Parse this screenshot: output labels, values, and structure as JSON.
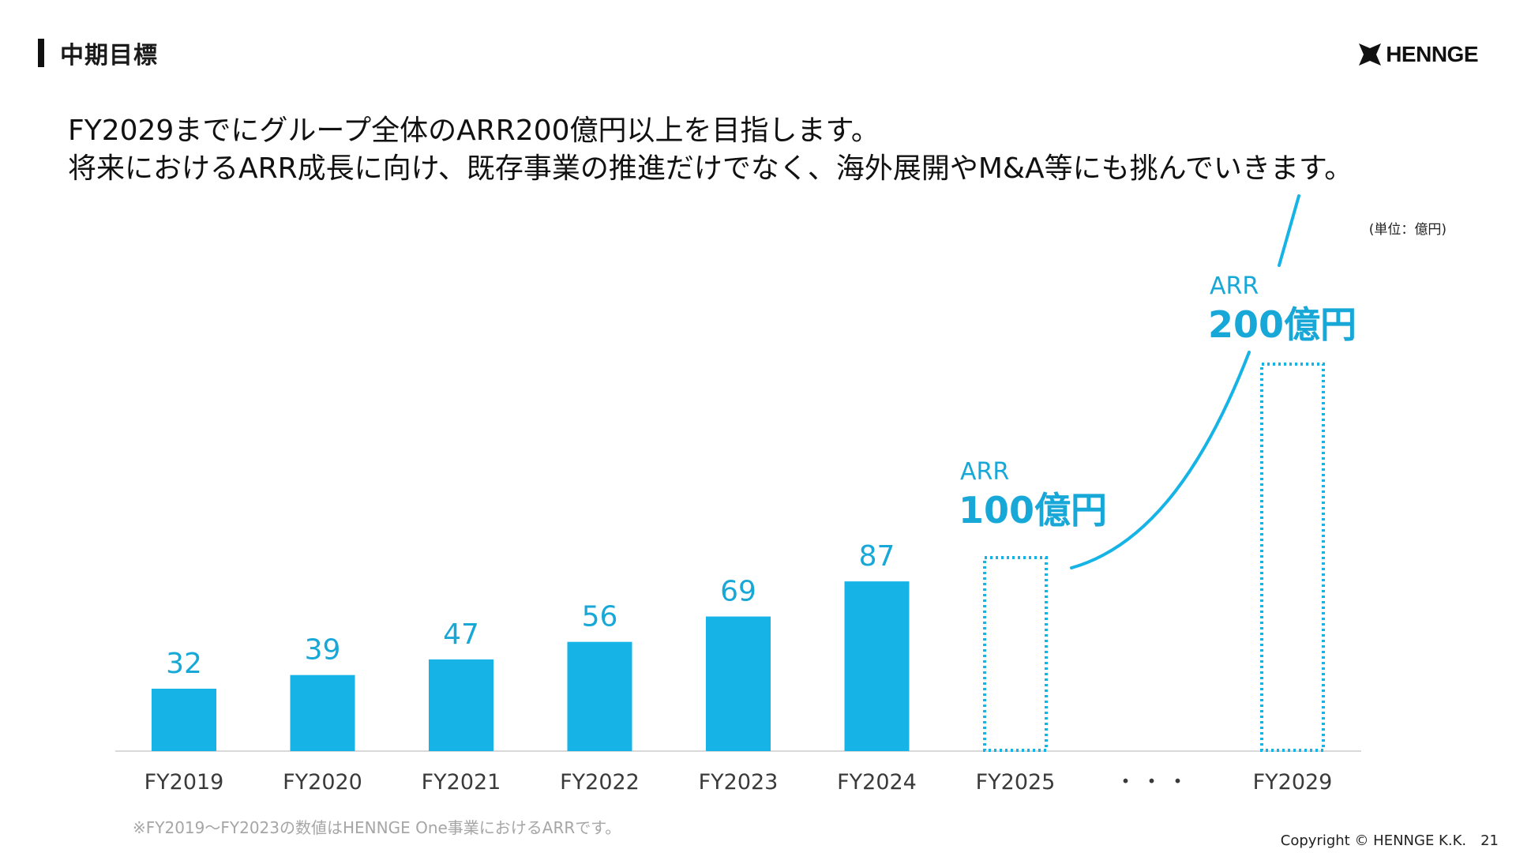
{
  "slide": {
    "heading": "中期目標",
    "logo_text": "HENNGE",
    "lead_lines": [
      "FY2029までにグループ全体のARR200億円以上を目指します。",
      "将来におけるARR成長に向け、既存事業の推進だけでなく、海外展開やM&A等にも挑んでいきます。"
    ],
    "unit": "(単位：億円)",
    "footnote": "※FY2019〜FY2023の数値はHENNGE One事業におけるARRです。",
    "copyright": "Copyright © HENNGE K.K.",
    "page_number": "21"
  },
  "colors": {
    "bar": "#16b4e6",
    "label": "#18a8d8",
    "axis": "#d9d9d9",
    "tick": "#3a3a3a"
  },
  "chart_data": {
    "type": "bar",
    "categories": [
      "FY2019",
      "FY2020",
      "FY2021",
      "FY2022",
      "FY2023",
      "FY2024",
      "FY2025",
      "・・・",
      "FY2029"
    ],
    "values": [
      32,
      39,
      47,
      56,
      69,
      87,
      null,
      null,
      null
    ],
    "data_labels": [
      "32",
      "39",
      "47",
      "56",
      "69",
      "87",
      "",
      "",
      ""
    ],
    "targets": [
      {
        "category": "FY2025",
        "value": 100,
        "label_top": "ARR",
        "label_main": "100億円"
      },
      {
        "category": "FY2029",
        "value": 200,
        "label_top": "ARR",
        "label_main": "200億円"
      }
    ],
    "ylim": [
      0,
      200
    ],
    "grid": false,
    "legend": "none"
  }
}
